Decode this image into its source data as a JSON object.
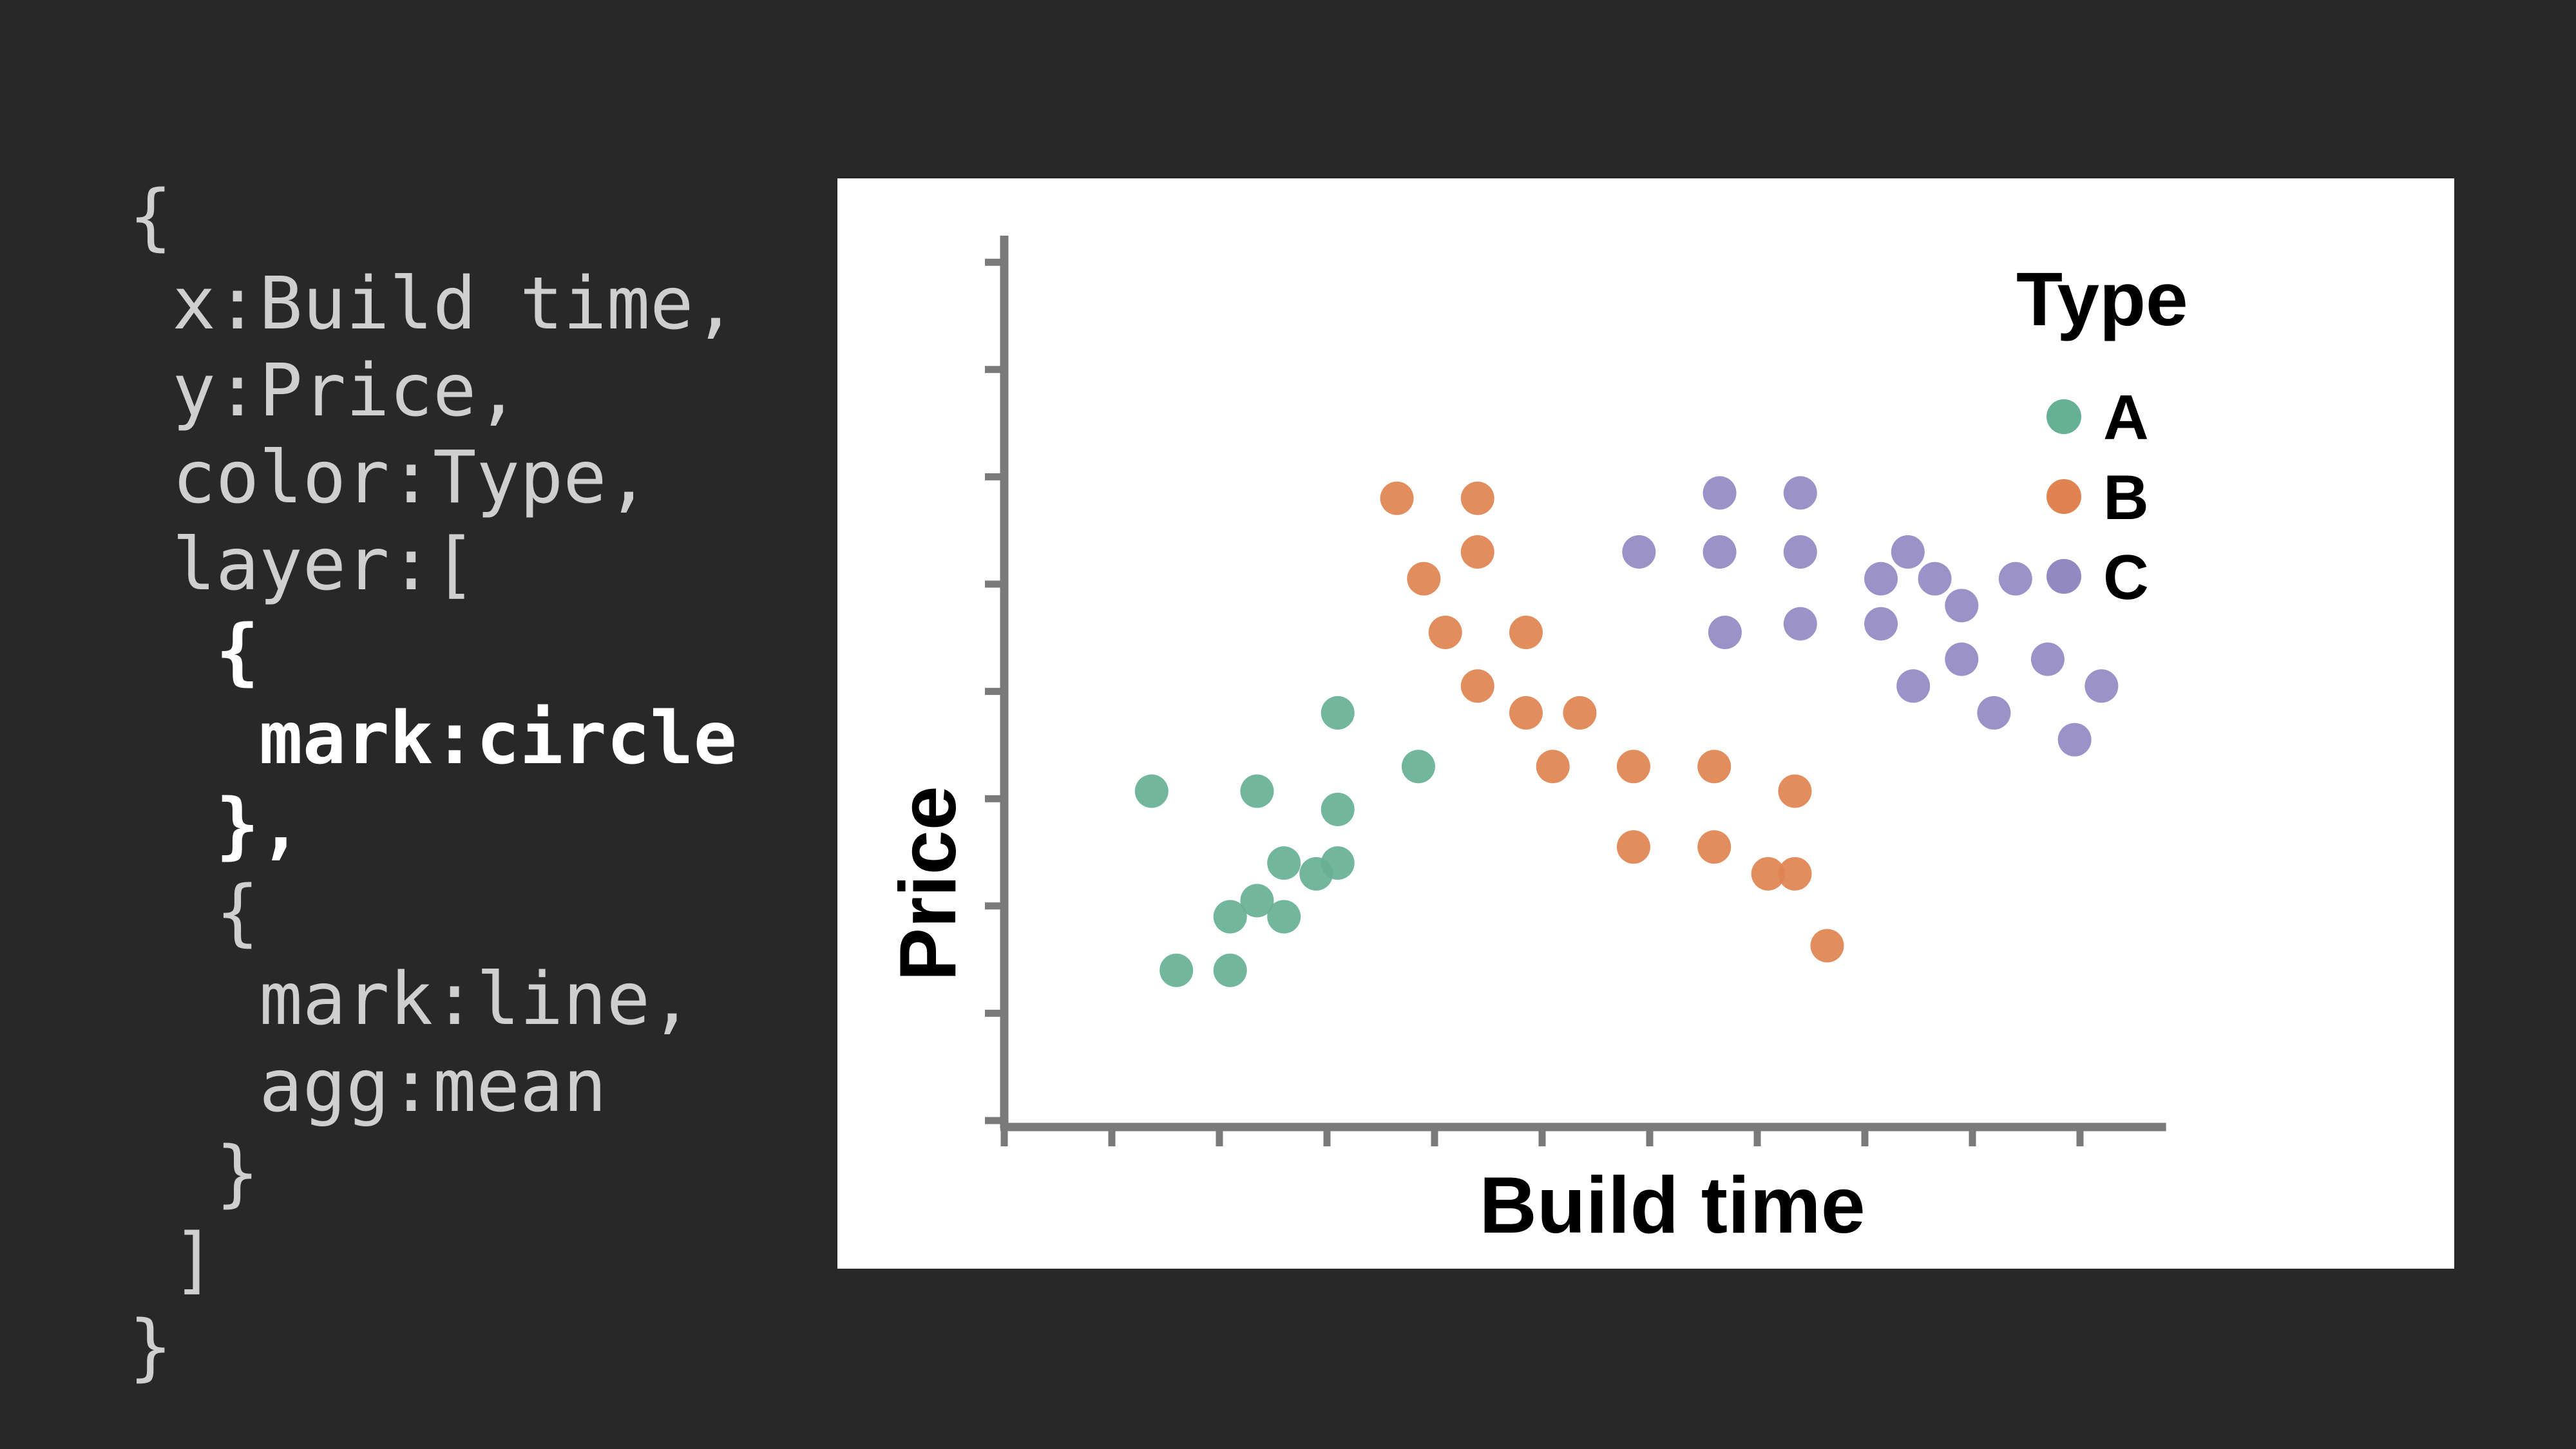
{
  "code": {
    "lines": [
      "{",
      " x:Build time,",
      " y:Price,",
      " color:Type,",
      " layer:[",
      "  {",
      "   mark:circle",
      "  },",
      "  {",
      "   mark:line,",
      "   agg:mean",
      "  }",
      " ]",
      "}"
    ],
    "highlighted_lines": [
      5,
      6,
      7
    ]
  },
  "chart_data": {
    "type": "scatter",
    "title": "",
    "xlabel": "Build time",
    "ylabel": "Price",
    "xlim": [
      0,
      10.8
    ],
    "ylim": [
      0,
      8.2
    ],
    "x_ticks": [
      0,
      1,
      2,
      3,
      4,
      5,
      6,
      7,
      8,
      9,
      10
    ],
    "y_ticks": [
      0,
      1,
      2,
      3,
      4,
      5,
      6,
      7,
      8
    ],
    "tick_labels_shown": false,
    "legend": {
      "title": "Type",
      "position": "top-right"
    },
    "series": [
      {
        "name": "A",
        "color": "#66b095",
        "points": [
          [
            1.37,
            3.07
          ],
          [
            1.6,
            1.4
          ],
          [
            2.1,
            1.4
          ],
          [
            2.1,
            1.9
          ],
          [
            2.35,
            2.05
          ],
          [
            2.35,
            3.07
          ],
          [
            2.6,
            1.9
          ],
          [
            2.6,
            2.4
          ],
          [
            2.9,
            2.3
          ],
          [
            3.1,
            2.4
          ],
          [
            3.1,
            2.9
          ],
          [
            3.1,
            3.8
          ],
          [
            3.85,
            3.3
          ]
        ]
      },
      {
        "name": "B",
        "color": "#e08350",
        "points": [
          [
            3.65,
            5.8
          ],
          [
            3.9,
            5.05
          ],
          [
            4.1,
            4.55
          ],
          [
            4.4,
            5.8
          ],
          [
            4.4,
            5.3
          ],
          [
            4.4,
            4.05
          ],
          [
            4.85,
            4.55
          ],
          [
            4.85,
            3.8
          ],
          [
            5.1,
            3.3
          ],
          [
            5.35,
            3.8
          ],
          [
            5.85,
            3.3
          ],
          [
            5.85,
            2.55
          ],
          [
            6.6,
            3.3
          ],
          [
            6.6,
            2.55
          ],
          [
            7.1,
            2.3
          ],
          [
            7.35,
            3.07
          ],
          [
            7.35,
            2.3
          ],
          [
            7.65,
            1.63
          ]
        ]
      },
      {
        "name": "C",
        "color": "#9289c3",
        "points": [
          [
            5.9,
            5.3
          ],
          [
            6.65,
            5.85
          ],
          [
            6.65,
            5.3
          ],
          [
            6.7,
            4.55
          ],
          [
            7.4,
            5.85
          ],
          [
            7.4,
            5.3
          ],
          [
            7.4,
            4.63
          ],
          [
            8.15,
            5.05
          ],
          [
            8.15,
            4.63
          ],
          [
            8.4,
            5.3
          ],
          [
            8.45,
            4.05
          ],
          [
            8.65,
            5.05
          ],
          [
            8.9,
            4.8
          ],
          [
            8.9,
            4.3
          ],
          [
            9.2,
            3.8
          ],
          [
            9.4,
            5.05
          ],
          [
            9.7,
            4.3
          ],
          [
            9.95,
            3.55
          ],
          [
            10.2,
            4.05
          ]
        ]
      }
    ]
  }
}
